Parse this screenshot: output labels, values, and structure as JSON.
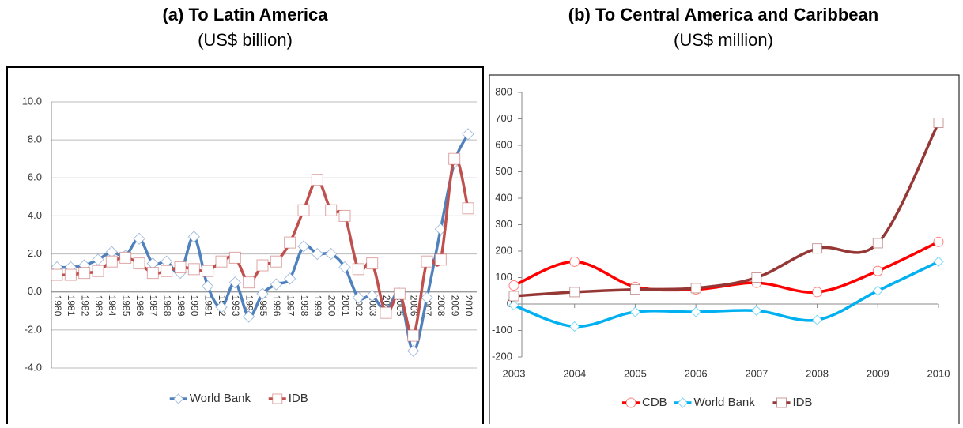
{
  "chart_data": [
    {
      "type": "line",
      "title": "(a) To Latin America",
      "subtitle": "(US$ billion)",
      "categories": [
        "1980",
        "1981",
        "1982",
        "1983",
        "1984",
        "1985",
        "1986",
        "1987",
        "1988",
        "1989",
        "1990",
        "1991",
        "1992",
        "1993",
        "1994",
        "1995",
        "1996",
        "1997",
        "1998",
        "1999",
        "2000",
        "2001",
        "2002",
        "2003",
        "2004",
        "2005",
        "2006",
        "2007",
        "2008",
        "2009",
        "2010"
      ],
      "series": [
        {
          "name": "World Bank",
          "color": "#4f81bd",
          "marker": "diamond",
          "values": [
            1.3,
            1.3,
            1.4,
            1.7,
            2.1,
            1.9,
            2.8,
            1.5,
            1.6,
            1.0,
            2.9,
            0.3,
            -0.8,
            0.5,
            -1.3,
            -0.1,
            0.4,
            0.7,
            2.4,
            2.0,
            2.0,
            1.3,
            -0.3,
            -0.2,
            -1.0,
            -0.1,
            -3.1,
            -0.3,
            3.3,
            6.8,
            8.3
          ]
        },
        {
          "name": "IDB",
          "color": "#c0504d",
          "marker": "square",
          "values": [
            0.9,
            0.9,
            1.0,
            1.1,
            1.6,
            1.8,
            1.5,
            1.0,
            1.1,
            1.3,
            1.2,
            1.1,
            1.6,
            1.8,
            0.5,
            1.4,
            1.6,
            2.6,
            4.3,
            5.9,
            4.3,
            4.0,
            1.2,
            1.5,
            -1.1,
            -0.1,
            -2.3,
            1.6,
            1.7,
            7.0,
            4.4
          ]
        }
      ],
      "ylim": [
        -4,
        10
      ],
      "yticks": [
        {
          "value": -4,
          "label": "-4.0"
        },
        {
          "value": -2,
          "label": "-2.0"
        },
        {
          "value": 0,
          "label": "0.0"
        },
        {
          "value": 2,
          "label": "2.0"
        },
        {
          "value": 4,
          "label": "4.0"
        },
        {
          "value": 6,
          "label": "6.0"
        },
        {
          "value": 8,
          "label": "8.0"
        },
        {
          "value": 10,
          "label": "10.0"
        }
      ],
      "grid": true,
      "legend": "bottom"
    },
    {
      "type": "line",
      "title": "(b) To Central America and Caribbean",
      "subtitle": "(US$ million)",
      "categories": [
        "2003",
        "2004",
        "2005",
        "2006",
        "2007",
        "2008",
        "2009",
        "2010"
      ],
      "series": [
        {
          "name": "CDB",
          "color": "#ff0000",
          "marker": "circle",
          "values": [
            70,
            160,
            65,
            55,
            80,
            45,
            125,
            235
          ]
        },
        {
          "name": "World Bank",
          "color": "#00b0f0",
          "marker": "diamond",
          "values": [
            -5,
            -85,
            -30,
            -30,
            -25,
            -60,
            50,
            160
          ]
        },
        {
          "name": "IDB",
          "color": "#953735",
          "marker": "square",
          "values": [
            30,
            45,
            55,
            60,
            100,
            210,
            230,
            685
          ]
        }
      ],
      "ylim": [
        -200,
        800
      ],
      "yticks": [
        -200,
        -100,
        0,
        100,
        200,
        300,
        400,
        500,
        600,
        700,
        800
      ],
      "grid": false,
      "legend": "bottom"
    }
  ]
}
